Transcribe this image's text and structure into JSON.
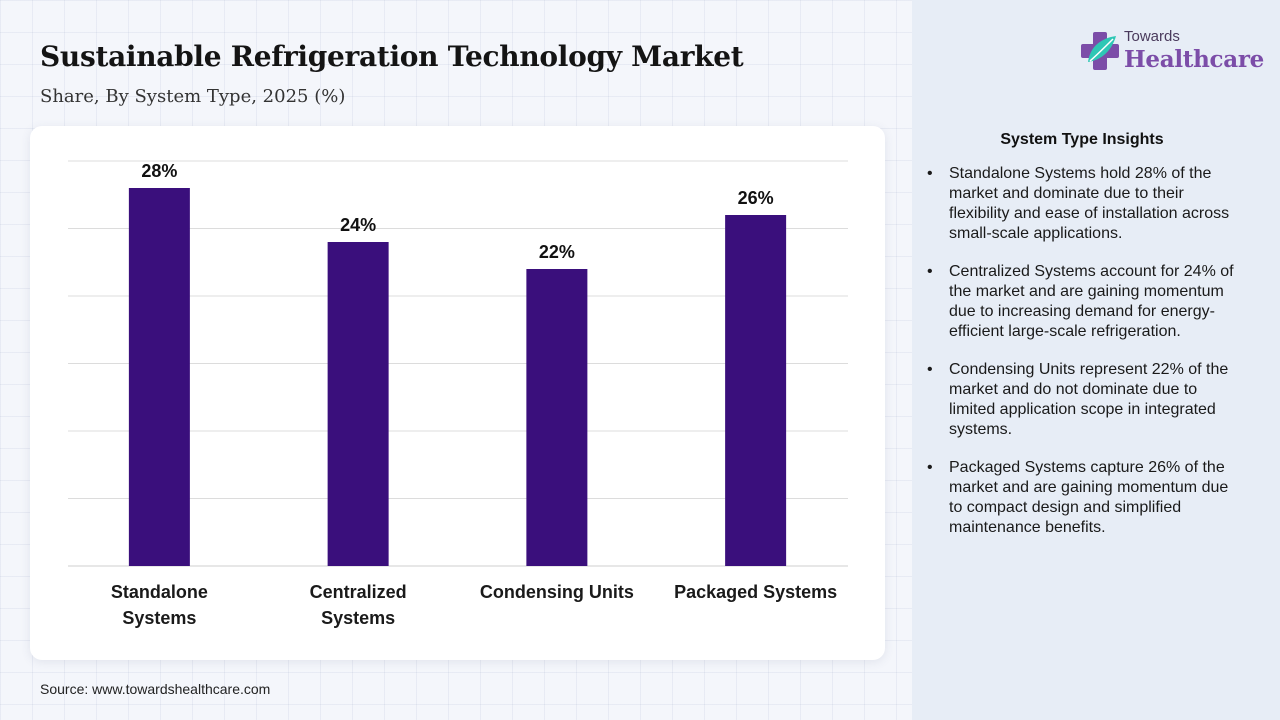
{
  "header": {
    "title": "Sustainable Refrigeration Technology Market",
    "subtitle": "Share, By System Type, 2025 (%)"
  },
  "logo": {
    "icon": "medical-cross-leaf-icon",
    "top_text": "Towards",
    "main_text": "Healthcare"
  },
  "colors": {
    "bar": "#3a0f7c",
    "accent": "#7c4da8",
    "gridline": "#dcdcdc"
  },
  "chart_data": {
    "type": "bar",
    "title": "",
    "xlabel": "",
    "ylabel": "",
    "categories": [
      [
        "Standalone",
        "Systems"
      ],
      [
        "Centralized",
        "Systems"
      ],
      [
        "Condensing Units"
      ],
      [
        "Packaged Systems"
      ]
    ],
    "values": [
      28,
      24,
      22,
      26
    ],
    "data_labels": [
      "28%",
      "24%",
      "22%",
      "26%"
    ],
    "ylim": [
      0,
      30
    ],
    "grid": true,
    "legend": "none"
  },
  "insights": {
    "title": "System Type Insights",
    "items": [
      "Standalone Systems hold 28% of the market and dominate due to their flexibility and ease of installation across small-scale applications.",
      "Centralized Systems account for 24% of the market and are gaining momentum due to increasing demand for energy-efficient large-scale refrigeration.",
      "Condensing Units represent 22% of the market and do not dominate due to limited application scope in integrated systems.",
      "Packaged Systems capture 26% of the market and are gaining momentum due to compact design and simplified maintenance benefits."
    ]
  },
  "footer": {
    "source": "Source: www.towardshealthcare.com"
  }
}
